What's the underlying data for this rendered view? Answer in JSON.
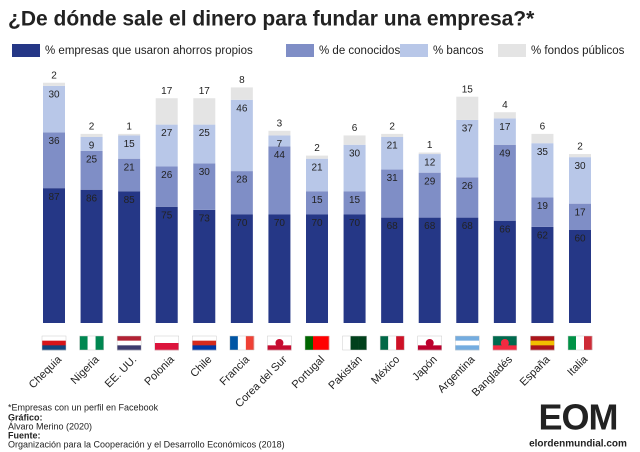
{
  "chart_data": {
    "type": "stacked-bar",
    "title": "¿De dónde sale el dinero para fundar una empresa?*",
    "categories": [
      "Chequia",
      "Nigeria",
      "EE. UU.",
      "Polonia",
      "Chile",
      "Francia",
      "Corea del Sur",
      "Portugal",
      "Pakistán",
      "México",
      "Japón",
      "Argentina",
      "Bangladés",
      "España",
      "Italia"
    ],
    "series": [
      {
        "name": "% empresas que usaron ahorros propios",
        "color": "#253786",
        "values": [
          87,
          86,
          85,
          75,
          73,
          70,
          70,
          70,
          70,
          68,
          68,
          68,
          66,
          62,
          60
        ]
      },
      {
        "name": "% de conocidos",
        "color": "#7f8ec6",
        "values": [
          36,
          25,
          21,
          26,
          30,
          28,
          44,
          15,
          15,
          31,
          29,
          26,
          49,
          19,
          17
        ]
      },
      {
        "name": "% bancos",
        "color": "#b8c7e8",
        "values": [
          30,
          9,
          15,
          27,
          25,
          46,
          7,
          21,
          30,
          21,
          12,
          37,
          17,
          35,
          30
        ]
      },
      {
        "name": "% fondos públicos",
        "color": "#e4e4e4",
        "values": [
          2,
          2,
          1,
          17,
          17,
          8,
          3,
          2,
          6,
          2,
          1,
          15,
          4,
          6,
          2
        ]
      }
    ]
  },
  "footer": {
    "note": "*Empresas con un perfil en Facebook",
    "graphic_label": "Gráfico:",
    "graphic": "Álvaro Merino (2020)",
    "source_label": "Fuente:",
    "source": "Organización para la Cooperación y el Desarrollo Económicos (2018)",
    "logo": "EOM",
    "website": "elordenmundial.com"
  }
}
